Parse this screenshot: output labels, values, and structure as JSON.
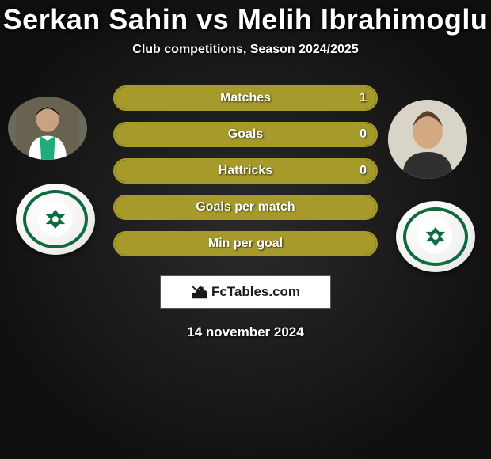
{
  "title": "Serkan Sahin vs Melih Ibrahimoglu",
  "subtitle": "Club competitions, Season 2024/2025",
  "date": "14 november 2024",
  "brand": "FcTables.com",
  "accent_color": "#a69a2a",
  "team_color": "#0d6b3e",
  "stats": [
    {
      "label": "Matches",
      "value": "1",
      "fill": 1.0
    },
    {
      "label": "Goals",
      "value": "0",
      "fill": 1.0
    },
    {
      "label": "Hattricks",
      "value": "0",
      "fill": 1.0
    },
    {
      "label": "Goals per match",
      "value": "",
      "fill": 1.0
    },
    {
      "label": "Min per goal",
      "value": "",
      "fill": 1.0
    }
  ]
}
